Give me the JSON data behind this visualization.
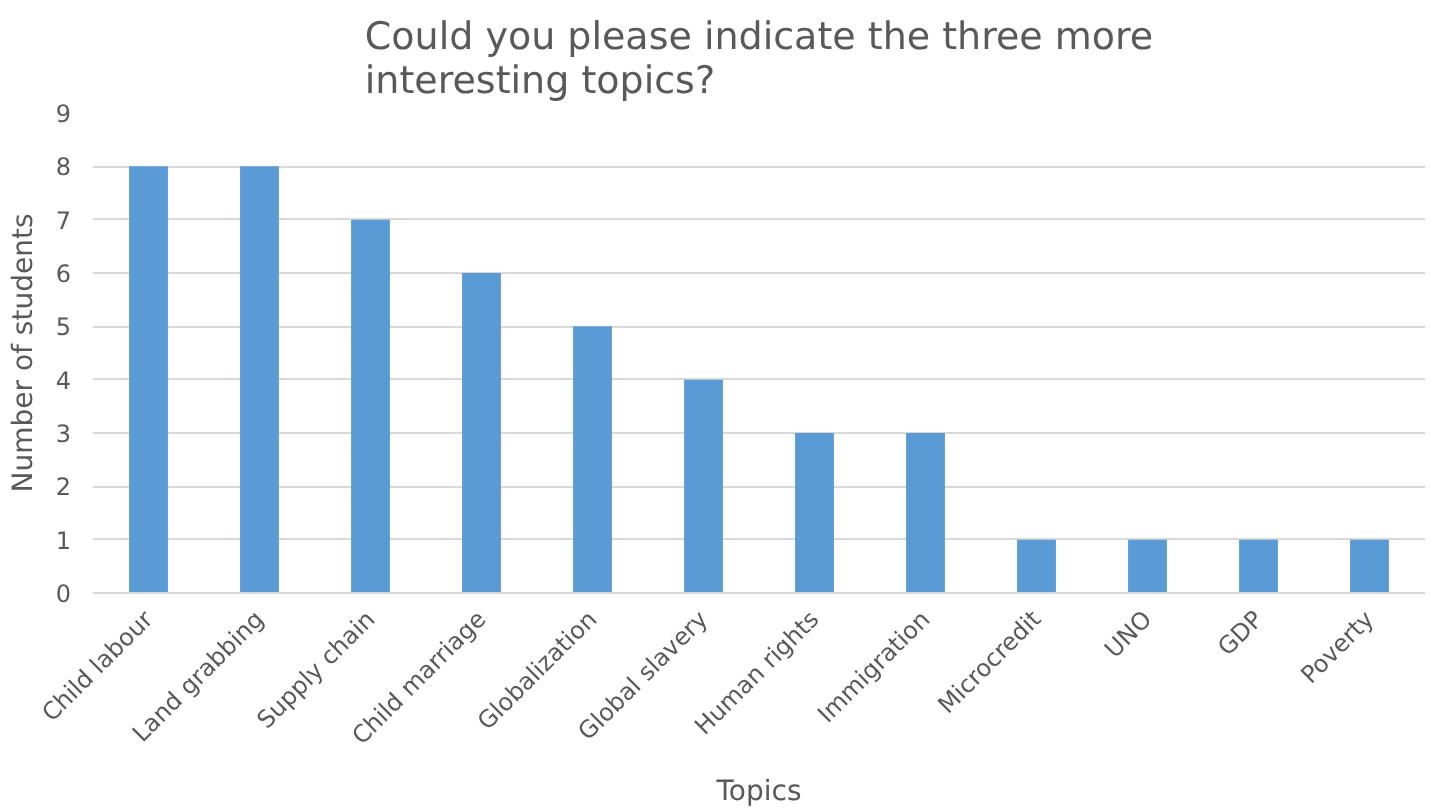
{
  "chart_data": {
    "type": "bar",
    "title": "Could you please indicate the three more\ninteresting topics?",
    "xlabel": "Topics",
    "ylabel": "Number of students",
    "categories": [
      "Child labour",
      "Land grabbing",
      "Supply chain",
      "Child marriage",
      "Globalization",
      "Global slavery",
      "Human rights",
      "Immigration",
      "Microcredit",
      "UNO",
      "GDP",
      "Poverty"
    ],
    "values": [
      8,
      8,
      7,
      6,
      5,
      4,
      3,
      3,
      1,
      1,
      1,
      1
    ],
    "color": "#5b9bd5",
    "ylim": [
      0,
      9
    ],
    "yticks": [
      0,
      1,
      2,
      3,
      4,
      5,
      6,
      7,
      8,
      9
    ],
    "grid": "y"
  }
}
